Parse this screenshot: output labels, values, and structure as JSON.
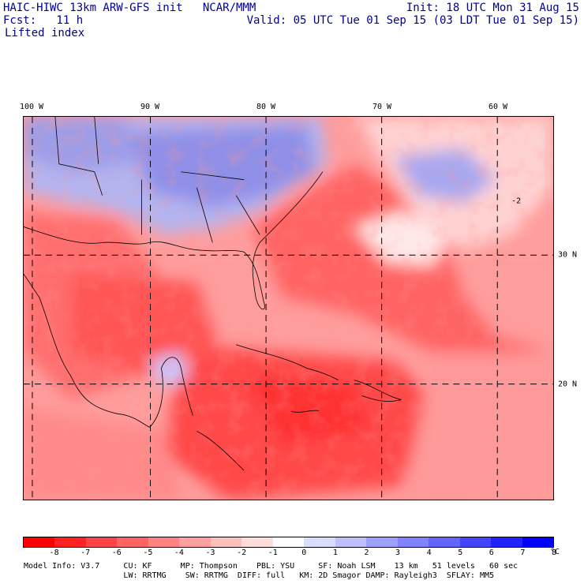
{
  "header": {
    "line1_left": "HAIC-HIWC 13km ARW-GFS init   NCAR/MMM",
    "line1_right": "Init: 18 UTC Mon 31 Aug 15",
    "line2_left": "Fcst:   11 h",
    "line2_right": "Valid: 05 UTC Tue 01 Sep 15 (03 LDT Tue 01 Sep 15)",
    "line3_left": "Lifted index"
  },
  "map": {
    "lon_labels": [
      "100 W",
      "90 W",
      "80 W",
      "70 W",
      "60 W"
    ],
    "lat_labels": [
      "30 N",
      "20 N"
    ],
    "contour_label": "-2"
  },
  "colorbar": {
    "colors": [
      "#ff0000",
      "#ff2222",
      "#ff4444",
      "#ff6464",
      "#ff8282",
      "#ffa0a0",
      "#ffbebe",
      "#ffdcdc",
      "#ffffff",
      "#dcdcff",
      "#bebeff",
      "#a0a0ff",
      "#8282ff",
      "#6464ff",
      "#4444ff",
      "#2222ff",
      "#0000ff"
    ],
    "tick_labels": [
      "-8",
      "-7",
      "-6",
      "-5",
      "-4",
      "-3",
      "-2",
      "-1",
      "0",
      "1",
      "2",
      "3",
      "4",
      "5",
      "6",
      "7",
      "8"
    ],
    "unit": "°C"
  },
  "model_info": {
    "line1": "Model Info: V3.7     CU: KF      MP: Thompson    PBL: YSU     SF: Noah LSM    13 km   51 levels   60 sec",
    "line2": "                     LW: RRTMG    SW: RRTMG  DIFF: full   KM: 2D Smagor DAMP: Rayleigh3  SFLAY: MM5"
  }
}
